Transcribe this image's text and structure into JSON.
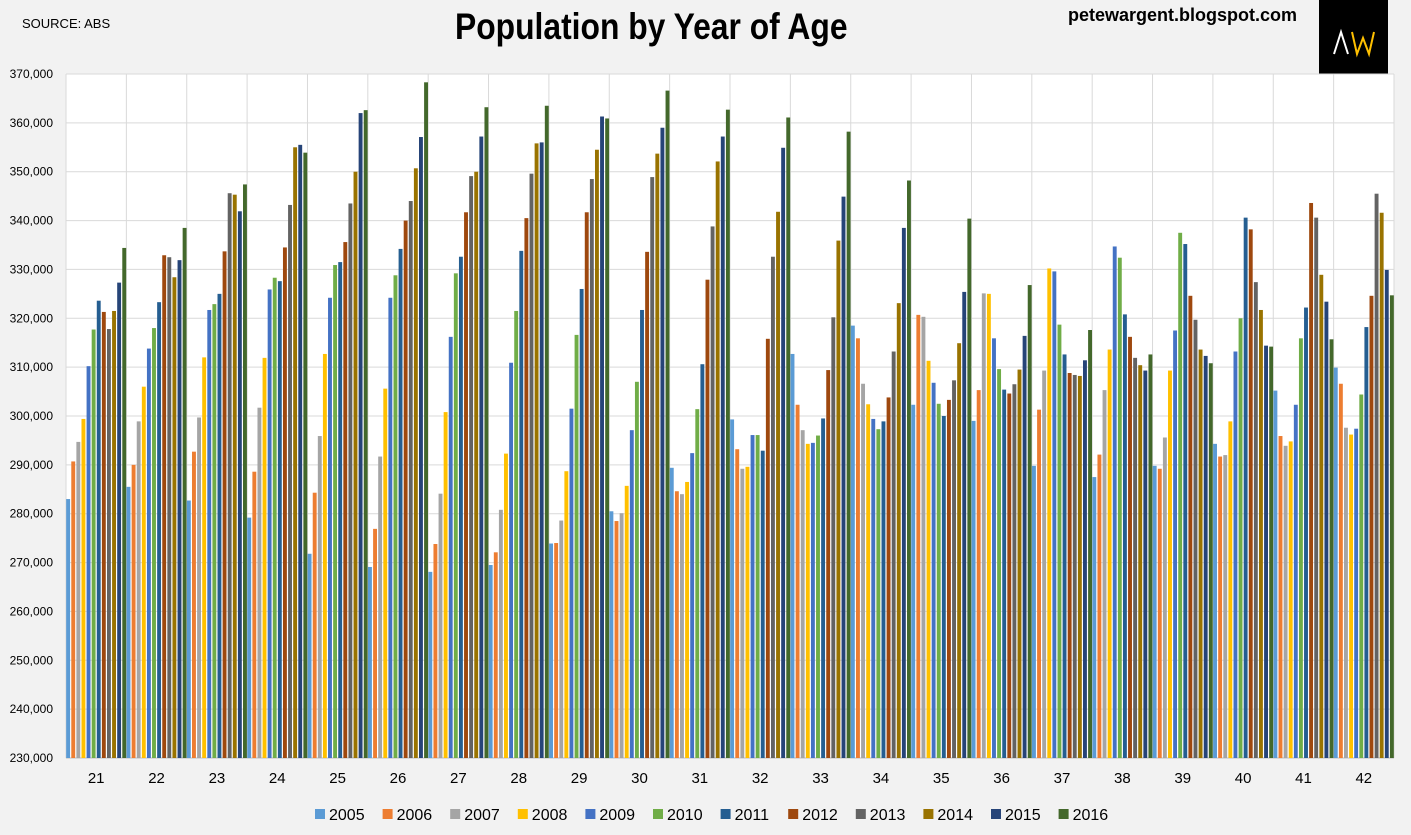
{
  "header": {
    "source": "SOURCE: ABS",
    "blog": "petewargent.blogspot.com",
    "logo_text": "AW"
  },
  "chart_data": {
    "type": "bar",
    "title": "Population by Year of Age",
    "xlabel": "",
    "ylabel": "",
    "ylim": [
      230000,
      370000
    ],
    "yticks": [
      230000,
      240000,
      250000,
      260000,
      270000,
      280000,
      290000,
      300000,
      310000,
      320000,
      330000,
      340000,
      350000,
      360000,
      370000
    ],
    "grid": true,
    "legend_position": "bottom",
    "categories": [
      "21",
      "22",
      "23",
      "24",
      "25",
      "26",
      "27",
      "28",
      "29",
      "30",
      "31",
      "32",
      "33",
      "34",
      "35",
      "36",
      "37",
      "38",
      "39",
      "40",
      "41",
      "42"
    ],
    "series": [
      {
        "name": "2005",
        "color": "#5b9bd5",
        "values": [
          283000,
          285500,
          282700,
          279200,
          271800,
          269100,
          268100,
          269500,
          273900,
          280500,
          289400,
          299300,
          312700,
          318500,
          302300,
          299000,
          289800,
          287500,
          289800,
          294300,
          305200,
          309900
        ]
      },
      {
        "name": "2006",
        "color": "#ed7d31",
        "values": [
          290700,
          290000,
          292700,
          288600,
          284300,
          276900,
          273800,
          272100,
          274000,
          278500,
          284600,
          293200,
          302300,
          315900,
          320700,
          305300,
          301300,
          292100,
          289200,
          291700,
          295900,
          306600
        ]
      },
      {
        "name": "2007",
        "color": "#a5a5a5",
        "values": [
          294700,
          298900,
          299700,
          301700,
          295900,
          291700,
          284100,
          280800,
          278600,
          280100,
          284000,
          289200,
          297100,
          306600,
          320300,
          325100,
          309300,
          305300,
          295600,
          292000,
          293900,
          297600
        ]
      },
      {
        "name": "2008",
        "color": "#ffc000",
        "values": [
          299400,
          306000,
          312000,
          311900,
          312700,
          305600,
          300800,
          292300,
          288700,
          285700,
          286500,
          289600,
          294300,
          302400,
          311300,
          325000,
          330200,
          313600,
          309300,
          298900,
          294800,
          296200
        ]
      },
      {
        "name": "2009",
        "color": "#4472c4",
        "values": [
          310200,
          313800,
          321700,
          325900,
          324200,
          324200,
          316200,
          310900,
          301500,
          297100,
          292400,
          296100,
          294500,
          299400,
          306800,
          315900,
          329600,
          334700,
          317500,
          313200,
          302300,
          297400
        ]
      },
      {
        "name": "2010",
        "color": "#70ad47",
        "values": [
          317700,
          318000,
          322900,
          328300,
          330900,
          328800,
          329200,
          321500,
          316600,
          307000,
          301400,
          296100,
          296000,
          297300,
          302500,
          309600,
          318700,
          332400,
          337500,
          320000,
          315900,
          304400
        ]
      },
      {
        "name": "2011",
        "color": "#255e91",
        "values": [
          323600,
          323300,
          325000,
          327600,
          331500,
          334200,
          332600,
          333800,
          326000,
          321700,
          310600,
          292900,
          299500,
          298900,
          300000,
          305400,
          312600,
          320800,
          335200,
          340600,
          322200,
          318200
        ]
      },
      {
        "name": "2012",
        "color": "#9e480e",
        "values": [
          321300,
          332900,
          333700,
          334500,
          335600,
          340000,
          341700,
          340500,
          341700,
          333600,
          327900,
          315800,
          309400,
          303800,
          303300,
          304600,
          308800,
          316200,
          324600,
          338200,
          343600,
          324600
        ]
      },
      {
        "name": "2013",
        "color": "#636363",
        "values": [
          317800,
          332500,
          345600,
          343200,
          343500,
          344000,
          349100,
          349600,
          348500,
          348900,
          338800,
          332600,
          320200,
          313200,
          307300,
          306500,
          308400,
          311900,
          319700,
          327400,
          340600,
          345500
        ]
      },
      {
        "name": "2014",
        "color": "#997300",
        "values": [
          321500,
          328400,
          345300,
          355000,
          350000,
          350700,
          350000,
          355800,
          354500,
          353700,
          352100,
          341800,
          335900,
          323100,
          314900,
          309500,
          308200,
          310400,
          313600,
          321700,
          328900,
          341600
        ]
      },
      {
        "name": "2015",
        "color": "#264478",
        "values": [
          327300,
          331900,
          341900,
          355500,
          362000,
          357100,
          357200,
          356000,
          361300,
          359000,
          357200,
          354900,
          344900,
          338500,
          325400,
          316400,
          311400,
          309300,
          312300,
          314400,
          323400,
          329900
        ]
      },
      {
        "name": "2016",
        "color": "#43682b",
        "values": [
          334400,
          338500,
          347400,
          353900,
          362600,
          368300,
          363200,
          363500,
          360900,
          366600,
          362700,
          361100,
          358200,
          348200,
          340400,
          326800,
          317600,
          312600,
          310800,
          314200,
          315700,
          324700
        ]
      }
    ]
  }
}
